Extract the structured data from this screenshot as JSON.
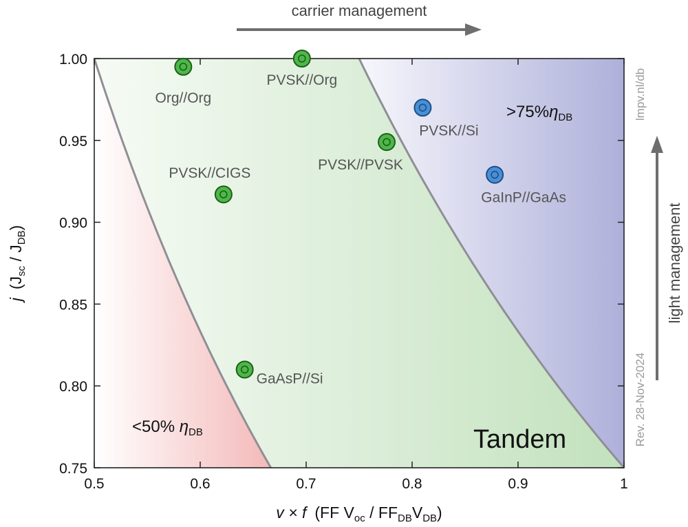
{
  "chart_data": {
    "type": "scatter",
    "x_axis": {
      "title_italic": "v × f",
      "title_rest": "(FF V",
      "title_sub1": "oc",
      "title_mid": " / FF",
      "title_sub2": "DB",
      "title_mid2": "V",
      "title_sub3": "DB",
      "title_end": ")",
      "xlim": [
        0.5,
        1.0
      ],
      "ticks": [
        0.5,
        0.6,
        0.7,
        0.8,
        0.9,
        1.0
      ],
      "tick_labels": [
        "0.5",
        "0.6",
        "0.7",
        "0.8",
        "0.9",
        "1"
      ]
    },
    "y_axis": {
      "title_italic": "j",
      "title_rest": "(J",
      "title_sub1": "sc",
      "title_mid": " / J",
      "title_sub2": "DB",
      "title_end": ")",
      "ylim": [
        0.75,
        1.0
      ],
      "ticks": [
        0.75,
        0.8,
        0.85,
        0.9,
        0.95,
        1.0
      ],
      "tick_labels": [
        "0.75",
        "0.80",
        "0.85",
        "0.90",
        "0.95",
        "1.00"
      ]
    },
    "iso_efficiency_curves": [
      {
        "eta_over_eta_db": 0.5
      },
      {
        "eta_over_eta_db": 0.75
      }
    ],
    "regions": [
      {
        "label": "<50% ",
        "symbol": "η",
        "sub": "DB",
        "color": "#f5c0c0"
      },
      {
        "label": "",
        "color": "#c8e4c4"
      },
      {
        "label": ">75%",
        "symbol": "η",
        "sub": "DB",
        "color": "#b4b6dc"
      }
    ],
    "region_title": "Tandem",
    "points": [
      {
        "label": "Org//Org",
        "x": 0.584,
        "y": 0.995,
        "group": "green"
      },
      {
        "label": "PVSK//Org",
        "x": 0.696,
        "y": 1.0,
        "group": "green"
      },
      {
        "label": "PVSK//CIGS",
        "x": 0.622,
        "y": 0.917,
        "group": "green"
      },
      {
        "label": "PVSK//PVSK",
        "x": 0.776,
        "y": 0.949,
        "group": "green"
      },
      {
        "label": "GaAsP//Si",
        "x": 0.642,
        "y": 0.81,
        "group": "green"
      },
      {
        "label": "PVSK//Si",
        "x": 0.81,
        "y": 0.97,
        "group": "blue"
      },
      {
        "label": "GaInP//GaAs",
        "x": 0.878,
        "y": 0.929,
        "group": "blue"
      }
    ],
    "colors": {
      "green_fill": "#4db848",
      "green_stroke": "#1f5e1c",
      "blue_fill": "#4a8fd6",
      "blue_stroke": "#1d4f85",
      "curve": "#8f8f96"
    }
  },
  "annotations": {
    "top_arrow_label": "carrier management",
    "right_arrow_label": "light management",
    "side_url": "lmpv.nl/db",
    "side_revision": "Rev. 28-Nov-2024"
  }
}
